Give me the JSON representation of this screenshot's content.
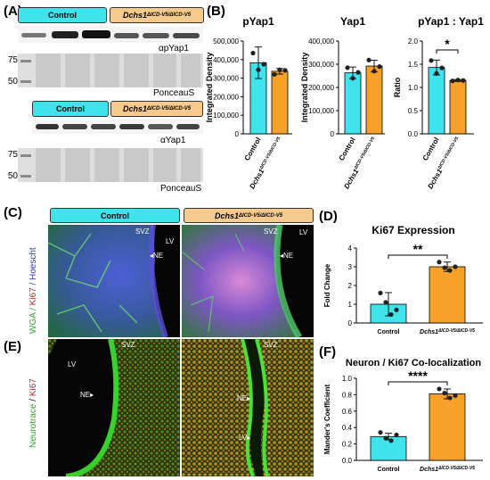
{
  "panel_labels": {
    "A": "(A)",
    "B": "(B)",
    "C": "(C)",
    "D": "(D)",
    "E": "(E)",
    "F": "(F)"
  },
  "groups": {
    "control": "Control",
    "mutant": "Dchs1",
    "mutant_sup": "ΔICD-V5/ΔICD-V5"
  },
  "blots": {
    "top_antibody": "αpYap1",
    "bottom_antibody": "αYap1",
    "ponceau": "PonceauS",
    "mw_75": "75",
    "mw_50": "50"
  },
  "micro": {
    "c_ylabel_wga": "WGA / ",
    "c_ylabel_ki67": "Ki67",
    "c_ylabel_hoechst": " / Hoescht",
    "e_ylabel_neuro": "Neurotrace",
    "e_ylabel_sep": " / ",
    "e_ylabel_ki67": "Ki67",
    "svz": "SVZ",
    "lv": "LV",
    "ne": "NE"
  },
  "colors": {
    "control": "#3ee3ec",
    "mutant": "#f7a02a"
  },
  "chart_data": [
    {
      "id": "B1",
      "type": "bar",
      "title": "pYap1",
      "ylabel": "Integrated Density",
      "categories": [
        "Control",
        "Dchs1 ΔICD-V5/ΔICD-V5"
      ],
      "values": [
        383000,
        337000
      ],
      "errors": [
        85000,
        15000
      ],
      "points": [
        [
          435000,
          345000,
          375000
        ],
        [
          320000,
          345000,
          342000
        ]
      ],
      "ylim": [
        0,
        500000
      ],
      "yticks": [
        "0",
        "100,000",
        "200,000",
        "300,000",
        "400,000",
        "500,000"
      ]
    },
    {
      "id": "B2",
      "type": "bar",
      "title": "Yap1",
      "ylabel": "Integrated Density",
      "categories": [
        "Control",
        "Dchs1 ΔICD-V5/ΔICD-V5"
      ],
      "values": [
        263000,
        292000
      ],
      "errors": [
        25000,
        25000
      ],
      "points": [
        [
          285000,
          240000,
          265000
        ],
        [
          318000,
          270000,
          290000
        ]
      ],
      "ylim": [
        0,
        400000
      ],
      "yticks": [
        "0",
        "100,000",
        "200,000",
        "300,000",
        "400,000"
      ]
    },
    {
      "id": "B3",
      "type": "bar",
      "title": "pYap1 : Yap1",
      "ylabel": "Ratio",
      "categories": [
        "Control",
        "Dchs1 ΔICD-V5/ΔICD-V5"
      ],
      "values": [
        1.43,
        1.15
      ],
      "errors": [
        0.16,
        0.02
      ],
      "points": [
        [
          1.58,
          1.3,
          1.42
        ],
        [
          1.14,
          1.16,
          1.15
        ]
      ],
      "ylim": [
        0,
        2.0
      ],
      "yticks": [
        "0.0",
        "0.5",
        "1.0",
        "1.5",
        "2.0"
      ],
      "significance": "*"
    },
    {
      "id": "D",
      "type": "bar",
      "title": "Ki67 Expression",
      "ylabel": "Fold Change",
      "categories": [
        "Control",
        "Dchs1 ΔICD-V5/ΔICD-V5"
      ],
      "values": [
        1.0,
        3.0
      ],
      "errors": [
        0.62,
        0.25
      ],
      "points": [
        [
          1.6,
          1.1,
          0.45,
          0.7
        ],
        [
          3.25,
          2.95,
          2.8,
          3.0
        ]
      ],
      "ylim": [
        0,
        4
      ],
      "yticks": [
        "0",
        "1",
        "2",
        "3",
        "4"
      ],
      "significance": "**"
    },
    {
      "id": "F",
      "type": "bar",
      "title": "Neuron / Ki67 Co-localization",
      "ylabel": "Mander's Coefficient",
      "categories": [
        "Control",
        "Dchs1 ΔICD-V5/ΔICD-V5"
      ],
      "values": [
        0.29,
        0.81
      ],
      "errors": [
        0.04,
        0.06
      ],
      "points": [
        [
          0.34,
          0.27,
          0.24,
          0.31
        ],
        [
          0.87,
          0.82,
          0.76,
          0.79
        ]
      ],
      "ylim": [
        0,
        1.0
      ],
      "yticks": [
        "0.0",
        "0.2",
        "0.4",
        "0.6",
        "0.8",
        "1.0"
      ],
      "significance": "****"
    }
  ]
}
